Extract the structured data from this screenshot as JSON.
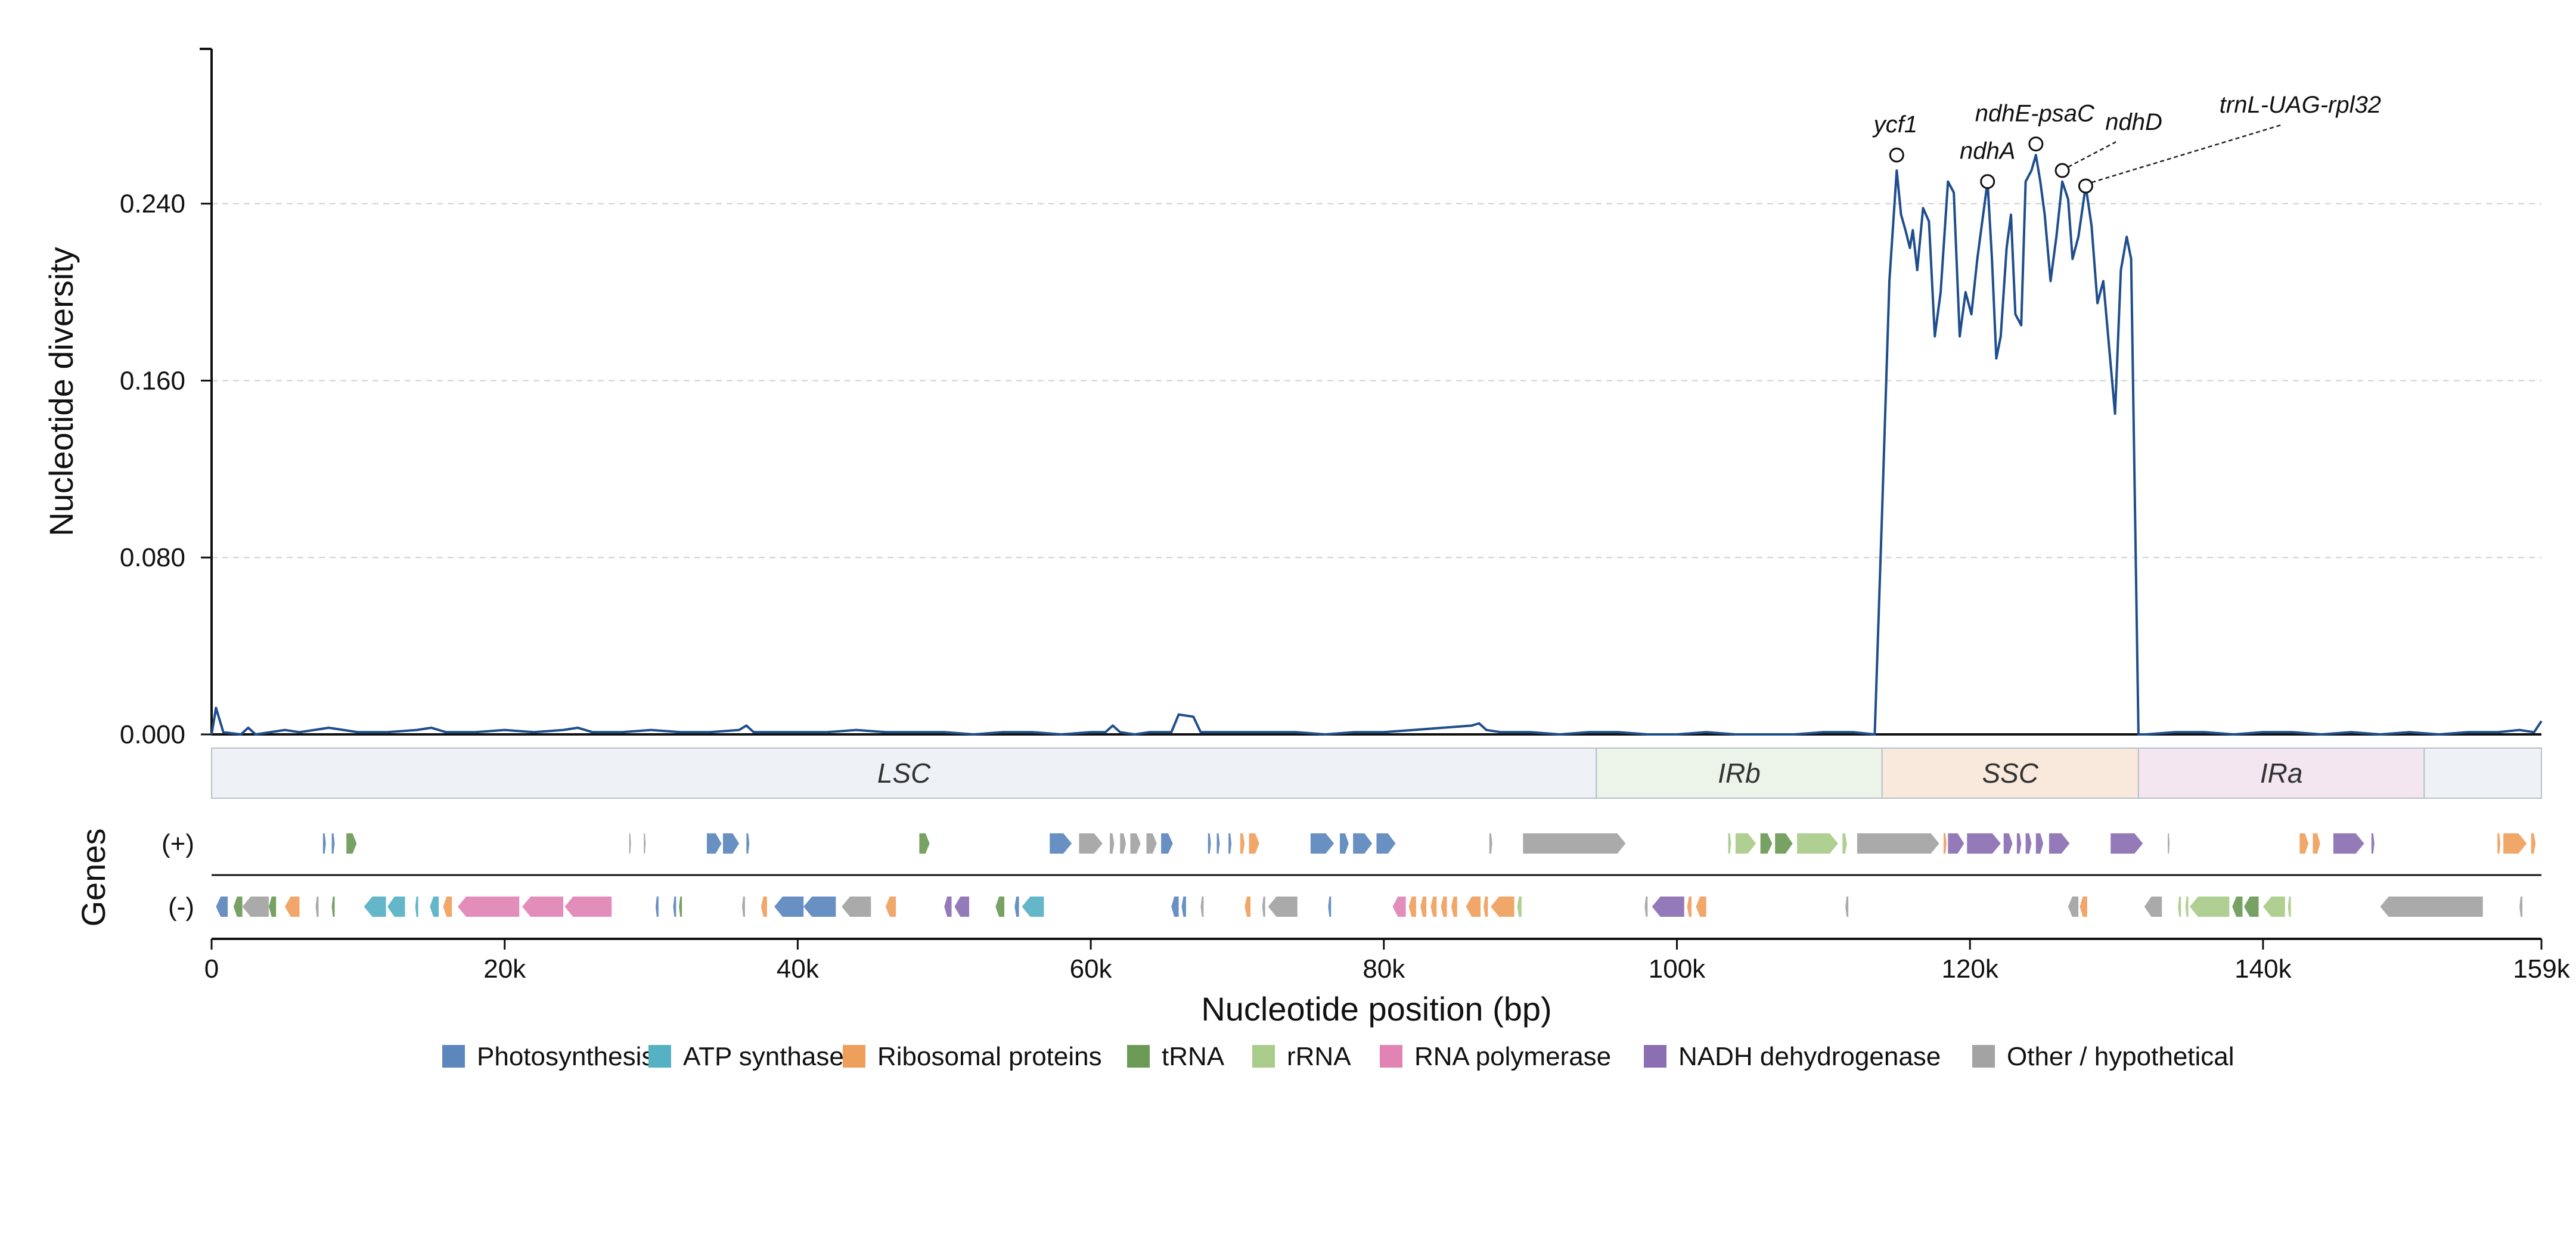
{
  "chart_data": {
    "type": "line",
    "ylabel": "Nucleotide diversity",
    "xlabel": "Nucleotide position (bp)",
    "ylim": [
      0,
      0.31
    ],
    "xlim": [
      0,
      159000
    ],
    "yticks": [
      0,
      0.08,
      0.16,
      0.24
    ],
    "ytick_labels": [
      "0.000",
      "0.080",
      "0.160",
      "0.240"
    ],
    "xticks": [
      0,
      20000,
      40000,
      60000,
      80000,
      100000,
      120000,
      140000,
      159000
    ],
    "xtick_labels": [
      "0",
      "20k",
      "40k",
      "60k",
      "80k",
      "100k",
      "120k",
      "140k",
      "159k"
    ],
    "grid": "y-dashed",
    "line_color": "#1f4e8c",
    "series": [
      {
        "points": [
          [
            0,
            0.0
          ],
          [
            300,
            0.012
          ],
          [
            800,
            0.001
          ],
          [
            2000,
            0.0
          ],
          [
            2500,
            0.003
          ],
          [
            3000,
            0.0
          ],
          [
            4000,
            0.001
          ],
          [
            5000,
            0.002
          ],
          [
            6000,
            0.001
          ],
          [
            7000,
            0.002
          ],
          [
            8000,
            0.003
          ],
          [
            9000,
            0.002
          ],
          [
            10000,
            0.001
          ],
          [
            12000,
            0.001
          ],
          [
            14000,
            0.002
          ],
          [
            15000,
            0.003
          ],
          [
            16000,
            0.001
          ],
          [
            18000,
            0.001
          ],
          [
            20000,
            0.002
          ],
          [
            22000,
            0.001
          ],
          [
            24000,
            0.002
          ],
          [
            25000,
            0.003
          ],
          [
            26000,
            0.001
          ],
          [
            28000,
            0.001
          ],
          [
            30000,
            0.002
          ],
          [
            32000,
            0.001
          ],
          [
            34000,
            0.001
          ],
          [
            36000,
            0.002
          ],
          [
            36500,
            0.004
          ],
          [
            37000,
            0.001
          ],
          [
            40000,
            0.001
          ],
          [
            42000,
            0.001
          ],
          [
            44000,
            0.002
          ],
          [
            46000,
            0.001
          ],
          [
            48000,
            0.001
          ],
          [
            50000,
            0.001
          ],
          [
            52000,
            0.0
          ],
          [
            54000,
            0.001
          ],
          [
            56000,
            0.001
          ],
          [
            58000,
            0.0
          ],
          [
            60000,
            0.001
          ],
          [
            61000,
            0.001
          ],
          [
            61500,
            0.004
          ],
          [
            62000,
            0.001
          ],
          [
            63000,
            0.0
          ],
          [
            64000,
            0.001
          ],
          [
            65500,
            0.001
          ],
          [
            66000,
            0.009
          ],
          [
            67000,
            0.008
          ],
          [
            67500,
            0.001
          ],
          [
            69000,
            0.001
          ],
          [
            70000,
            0.001
          ],
          [
            72000,
            0.001
          ],
          [
            74000,
            0.001
          ],
          [
            76000,
            0.0
          ],
          [
            78000,
            0.001
          ],
          [
            80000,
            0.001
          ],
          [
            82000,
            0.002
          ],
          [
            84000,
            0.003
          ],
          [
            86000,
            0.004
          ],
          [
            86500,
            0.005
          ],
          [
            87000,
            0.002
          ],
          [
            88000,
            0.001
          ],
          [
            90000,
            0.001
          ],
          [
            92000,
            0.0
          ],
          [
            94000,
            0.001
          ],
          [
            96000,
            0.001
          ],
          [
            98000,
            0.0
          ],
          [
            100000,
            0.0
          ],
          [
            102000,
            0.001
          ],
          [
            104000,
            0.0
          ],
          [
            106000,
            0.0
          ],
          [
            108000,
            0.0
          ],
          [
            110000,
            0.001
          ],
          [
            112000,
            0.001
          ],
          [
            113500,
            0.0
          ],
          [
            114000,
            0.1
          ],
          [
            114500,
            0.205
          ],
          [
            115000,
            0.255
          ],
          [
            115300,
            0.235
          ],
          [
            115600,
            0.228
          ],
          [
            115900,
            0.22
          ],
          [
            116100,
            0.228
          ],
          [
            116400,
            0.21
          ],
          [
            116800,
            0.238
          ],
          [
            117200,
            0.232
          ],
          [
            117600,
            0.18
          ],
          [
            118000,
            0.2
          ],
          [
            118500,
            0.25
          ],
          [
            118900,
            0.245
          ],
          [
            119300,
            0.18
          ],
          [
            119700,
            0.2
          ],
          [
            120100,
            0.19
          ],
          [
            120500,
            0.215
          ],
          [
            120900,
            0.235
          ],
          [
            121200,
            0.25
          ],
          [
            121500,
            0.215
          ],
          [
            121800,
            0.17
          ],
          [
            122100,
            0.18
          ],
          [
            122500,
            0.22
          ],
          [
            122800,
            0.235
          ],
          [
            123100,
            0.19
          ],
          [
            123500,
            0.185
          ],
          [
            123800,
            0.25
          ],
          [
            124200,
            0.255
          ],
          [
            124500,
            0.262
          ],
          [
            124800,
            0.25
          ],
          [
            125100,
            0.235
          ],
          [
            125500,
            0.205
          ],
          [
            125900,
            0.225
          ],
          [
            126300,
            0.25
          ],
          [
            126700,
            0.242
          ],
          [
            127000,
            0.215
          ],
          [
            127400,
            0.225
          ],
          [
            127900,
            0.248
          ],
          [
            128300,
            0.23
          ],
          [
            128700,
            0.195
          ],
          [
            129100,
            0.205
          ],
          [
            129500,
            0.175
          ],
          [
            129900,
            0.145
          ],
          [
            130300,
            0.21
          ],
          [
            130700,
            0.225
          ],
          [
            131000,
            0.215
          ],
          [
            131500,
            0.0
          ],
          [
            132000,
            0.0
          ],
          [
            134000,
            0.001
          ],
          [
            136000,
            0.001
          ],
          [
            138000,
            0.0
          ],
          [
            140000,
            0.001
          ],
          [
            142000,
            0.001
          ],
          [
            144000,
            0.0
          ],
          [
            146000,
            0.001
          ],
          [
            148000,
            0.0
          ],
          [
            150000,
            0.001
          ],
          [
            152000,
            0.0
          ],
          [
            154000,
            0.001
          ],
          [
            156000,
            0.001
          ],
          [
            157500,
            0.002
          ],
          [
            158500,
            0.001
          ],
          [
            159000,
            0.006
          ]
        ]
      }
    ],
    "annotations": [
      {
        "label": "ycf1",
        "x": 115000,
        "y": 0.262,
        "leader": false
      },
      {
        "label": "ndhA",
        "x": 121200,
        "y": 0.25,
        "leader": false
      },
      {
        "label": "ndhE-psaC",
        "x": 124500,
        "y": 0.267,
        "leader": false
      },
      {
        "label": "ndhD",
        "x": 126300,
        "y": 0.255,
        "leader": true
      },
      {
        "label": "trnL-UAG-rpl32",
        "x": 127900,
        "y": 0.248,
        "leader": true
      }
    ],
    "regions": [
      {
        "label": "LSC",
        "start": 0,
        "end": 94500,
        "color": "#eef2f6"
      },
      {
        "label": "IRb",
        "start": 94500,
        "end": 114000,
        "color": "#ecf3e9"
      },
      {
        "label": "SSC",
        "start": 114000,
        "end": 131500,
        "color": "#f8e9dc"
      },
      {
        "label": "IRa",
        "start": 131500,
        "end": 151000,
        "color": "#f3e6f0"
      },
      {
        "label": "",
        "start": 151000,
        "end": 159000,
        "color": "#eef2f6"
      }
    ],
    "genes_label": "Genes",
    "strand_labels": [
      "(+)",
      "(-)"
    ],
    "categories": [
      {
        "name": "Photosynthesis",
        "color": "#5b87bd"
      },
      {
        "name": "ATP synthase",
        "color": "#56b1c3"
      },
      {
        "name": "Ribosomal proteins",
        "color": "#ef9f5c"
      },
      {
        "name": "tRNA",
        "color": "#6b9a57"
      },
      {
        "name": "rRNA",
        "color": "#a9cc8a"
      },
      {
        "name": "RNA polymerase",
        "color": "#e184b4"
      },
      {
        "name": "NADH dehydrogenase",
        "color": "#8c6fb3"
      },
      {
        "name": "Other / hypothetical",
        "color": "#a3a3a3"
      }
    ],
    "genes_plus": [
      [
        7600,
        7800,
        "Photosynthesis"
      ],
      [
        8200,
        8400,
        "Photosynthesis"
      ],
      [
        9200,
        9900,
        "tRNA"
      ],
      [
        28500,
        28600,
        "Other / hypothetical"
      ],
      [
        29500,
        29600,
        "Other / hypothetical"
      ],
      [
        33800,
        34800,
        "Photosynthesis"
      ],
      [
        34900,
        36000,
        "Photosynthesis"
      ],
      [
        36500,
        36700,
        "Photosynthesis"
      ],
      [
        48300,
        49000,
        "tRNA"
      ],
      [
        57200,
        58700,
        "Photosynthesis"
      ],
      [
        59200,
        60800,
        "Other / hypothetical"
      ],
      [
        61300,
        61600,
        "Other / hypothetical"
      ],
      [
        62000,
        62400,
        "Other / hypothetical"
      ],
      [
        62700,
        63400,
        "Other / hypothetical"
      ],
      [
        63800,
        64500,
        "Other / hypothetical"
      ],
      [
        64800,
        65600,
        "Photosynthesis"
      ],
      [
        68000,
        68200,
        "Photosynthesis"
      ],
      [
        68600,
        68800,
        "Photosynthesis"
      ],
      [
        69400,
        69600,
        "Photosynthesis"
      ],
      [
        70200,
        70500,
        "Ribosomal proteins"
      ],
      [
        70800,
        71500,
        "Ribosomal proteins"
      ],
      [
        75000,
        76600,
        "Photosynthesis"
      ],
      [
        77000,
        77600,
        "Photosynthesis"
      ],
      [
        77900,
        79200,
        "Photosynthesis"
      ],
      [
        79500,
        80800,
        "Photosynthesis"
      ],
      [
        87200,
        87400,
        "Other / hypothetical"
      ],
      [
        89500,
        96500,
        "Other / hypothetical"
      ],
      [
        103500,
        103700,
        "rRNA"
      ],
      [
        104000,
        105400,
        "rRNA"
      ],
      [
        105700,
        106500,
        "tRNA"
      ],
      [
        106700,
        107900,
        "tRNA"
      ],
      [
        108200,
        111000,
        "rRNA"
      ],
      [
        111300,
        111600,
        "rRNA"
      ],
      [
        112300,
        117900,
        "Other / hypothetical"
      ],
      [
        118200,
        118400,
        "Ribosomal proteins"
      ],
      [
        118500,
        119600,
        "NADH dehydrogenase"
      ],
      [
        119800,
        122100,
        "NADH dehydrogenase"
      ],
      [
        122300,
        122900,
        "NADH dehydrogenase"
      ],
      [
        123200,
        123500,
        "NADH dehydrogenase"
      ],
      [
        123800,
        124200,
        "NADH dehydrogenase"
      ],
      [
        124500,
        125000,
        "NADH dehydrogenase"
      ],
      [
        125400,
        126800,
        "NADH dehydrogenase"
      ],
      [
        129600,
        131800,
        "NADH dehydrogenase"
      ],
      [
        133500,
        133600,
        "Other / hypothetical"
      ],
      [
        142500,
        143100,
        "Ribosomal proteins"
      ],
      [
        143400,
        143900,
        "Ribosomal proteins"
      ],
      [
        144800,
        146900,
        "NADH dehydrogenase"
      ],
      [
        147400,
        147600,
        "NADH dehydrogenase"
      ],
      [
        156000,
        156200,
        "Ribosomal proteins"
      ],
      [
        156400,
        158000,
        "Ribosomal proteins"
      ],
      [
        158300,
        158600,
        "Ribosomal proteins"
      ]
    ],
    "genes_minus": [
      [
        300,
        1100,
        "Photosynthesis"
      ],
      [
        1500,
        2100,
        "tRNA"
      ],
      [
        2100,
        3900,
        "Other / hypothetical"
      ],
      [
        3900,
        4400,
        "tRNA"
      ],
      [
        5000,
        6000,
        "Ribosomal proteins"
      ],
      [
        7100,
        7300,
        "Other / hypothetical"
      ],
      [
        8200,
        8400,
        "tRNA"
      ],
      [
        10400,
        11900,
        "ATP synthase"
      ],
      [
        12000,
        13200,
        "ATP synthase"
      ],
      [
        13900,
        14100,
        "ATP synthase"
      ],
      [
        14900,
        15500,
        "ATP synthase"
      ],
      [
        15800,
        16400,
        "Ribosomal proteins"
      ],
      [
        16800,
        21000,
        "RNA polymerase"
      ],
      [
        21200,
        24000,
        "RNA polymerase"
      ],
      [
        24100,
        27300,
        "RNA polymerase"
      ],
      [
        30300,
        30500,
        "Photosynthesis"
      ],
      [
        31500,
        31700,
        "Photosynthesis"
      ],
      [
        31900,
        32100,
        "tRNA"
      ],
      [
        36200,
        36400,
        "Other / hypothetical"
      ],
      [
        37500,
        37900,
        "Ribosomal proteins"
      ],
      [
        38400,
        40400,
        "Photosynthesis"
      ],
      [
        40400,
        42600,
        "Photosynthesis"
      ],
      [
        43000,
        45000,
        "Other / hypothetical"
      ],
      [
        46000,
        46700,
        "Ribosomal proteins"
      ],
      [
        50000,
        50500,
        "NADH dehydrogenase"
      ],
      [
        50700,
        51700,
        "NADH dehydrogenase"
      ],
      [
        53500,
        54100,
        "tRNA"
      ],
      [
        54800,
        55100,
        "Photosynthesis"
      ],
      [
        55300,
        56800,
        "ATP synthase"
      ],
      [
        65500,
        66000,
        "Photosynthesis"
      ],
      [
        66200,
        66500,
        "Photosynthesis"
      ],
      [
        67500,
        67700,
        "Other / hypothetical"
      ],
      [
        70500,
        70900,
        "Ribosomal proteins"
      ],
      [
        71700,
        71900,
        "Other / hypothetical"
      ],
      [
        72100,
        74100,
        "Other / hypothetical"
      ],
      [
        76200,
        76400,
        "Photosynthesis"
      ],
      [
        80600,
        81500,
        "RNA polymerase"
      ],
      [
        81700,
        82200,
        "Ribosomal proteins"
      ],
      [
        82500,
        82900,
        "Ribosomal proteins"
      ],
      [
        83200,
        83600,
        "Ribosomal proteins"
      ],
      [
        83900,
        84300,
        "Ribosomal proteins"
      ],
      [
        84600,
        85000,
        "Ribosomal proteins"
      ],
      [
        85600,
        86600,
        "Ribosomal proteins"
      ],
      [
        86800,
        87100,
        "Ribosomal proteins"
      ],
      [
        87300,
        88900,
        "Ribosomal proteins"
      ],
      [
        89100,
        89400,
        "rRNA"
      ],
      [
        97800,
        98000,
        "Other / hypothetical"
      ],
      [
        98300,
        100500,
        "NADH dehydrogenase"
      ],
      [
        100700,
        101000,
        "Ribosomal proteins"
      ],
      [
        101300,
        102000,
        "Ribosomal proteins"
      ],
      [
        111500,
        111700,
        "Other / hypothetical"
      ],
      [
        126700,
        127400,
        "Other / hypothetical"
      ],
      [
        127500,
        128000,
        "Ribosomal proteins"
      ],
      [
        131900,
        133100,
        "Other / hypothetical"
      ],
      [
        134200,
        134400,
        "rRNA"
      ],
      [
        134700,
        134900,
        "rRNA"
      ],
      [
        135000,
        137700,
        "rRNA"
      ],
      [
        137900,
        138600,
        "tRNA"
      ],
      [
        138700,
        139700,
        "tRNA"
      ],
      [
        140000,
        141500,
        "rRNA"
      ],
      [
        141700,
        141900,
        "rRNA"
      ],
      [
        148000,
        155000,
        "Other / hypothetical"
      ],
      [
        157500,
        157700,
        "Other / hypothetical"
      ]
    ]
  }
}
